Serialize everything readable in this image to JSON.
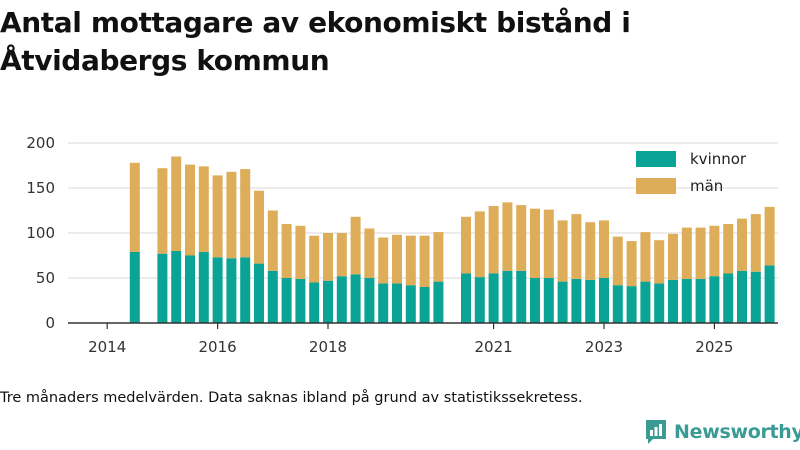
{
  "title": "Antal mottagare av ekonomiskt bistånd i Åtvidabergs kommun",
  "caption": "Tre månaders medelvärden. Data saknas ibland på grund av statistikssekretess.",
  "brand": "Newsworthy",
  "chart_data": {
    "type": "bar",
    "stacked": true,
    "title": "Antal mottagare av ekonomiskt bistånd i Åtvidabergs kommun",
    "xlabel": "",
    "ylabel": "",
    "ylim": [
      0,
      200
    ],
    "yticks": [
      0,
      50,
      100,
      150,
      200
    ],
    "xticks": [
      "2014",
      "2016",
      "2018",
      "2021",
      "2023",
      "2025"
    ],
    "grid": true,
    "legend_position": "top-right",
    "series": [
      {
        "name": "kvinnor",
        "color": "#0aa395",
        "values": [
          null,
          79,
          null,
          77,
          80,
          75,
          79,
          73,
          72,
          73,
          66,
          58,
          50,
          49,
          45,
          47,
          52,
          54,
          50,
          44,
          44,
          42,
          40,
          46,
          null,
          55,
          51,
          55,
          58,
          58,
          50,
          50,
          46,
          49,
          48,
          50,
          42,
          41,
          46,
          44,
          48,
          49,
          49,
          52,
          55,
          58,
          57,
          64
        ]
      },
      {
        "name": "män",
        "color": "#ddad5a",
        "values": [
          null,
          99,
          null,
          95,
          105,
          101,
          95,
          91,
          96,
          98,
          81,
          67,
          60,
          59,
          52,
          53,
          48,
          64,
          55,
          51,
          54,
          55,
          57,
          55,
          null,
          63,
          73,
          75,
          76,
          73,
          77,
          76,
          68,
          72,
          64,
          64,
          54,
          50,
          55,
          48,
          51,
          57,
          57,
          56,
          55,
          58,
          64,
          65
        ]
      }
    ],
    "x_dates": [
      "2014-04",
      "2014-07",
      "2014-10",
      "2015-01",
      "2015-04",
      "2015-07",
      "2015-10",
      "2016-01",
      "2016-04",
      "2016-07",
      "2016-10",
      "2017-01",
      "2017-04",
      "2017-07",
      "2017-10",
      "2018-01",
      "2018-04",
      "2018-07",
      "2018-10",
      "2019-01",
      "2019-04",
      "2019-07",
      "2019-10",
      "2020-01",
      "2020-04",
      "2020-07",
      "2020-10",
      "2021-01",
      "2021-04",
      "2021-07",
      "2021-10",
      "2022-01",
      "2022-04",
      "2022-07",
      "2022-10",
      "2023-01",
      "2023-04",
      "2023-07",
      "2023-10",
      "2024-01",
      "2024-04",
      "2024-07",
      "2024-10",
      "2025-01",
      "2025-04",
      "2025-07",
      "2025-10",
      "2026-01"
    ]
  }
}
